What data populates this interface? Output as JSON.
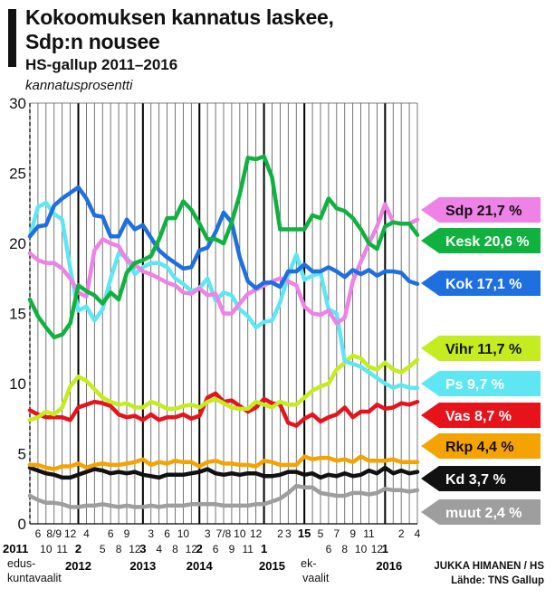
{
  "header": {
    "title_line1": "Kokoomuksen kannatus laskee,",
    "title_line2": "Sdp:n nousee",
    "subtitle": "HS-gallup 2011–2016",
    "unit": "kannatusprosentti"
  },
  "credits": {
    "author": "JUKKA HIMANEN / HS",
    "source": "Lähde: TNS Gallup"
  },
  "chart_data": {
    "type": "line",
    "title": "Kokoomuksen kannatus laskee, Sdp:n nousee",
    "subtitle": "HS-gallup 2011–2016",
    "ylabel": "kannatusprosentti",
    "ylim": [
      0,
      30
    ],
    "yticks": [
      0,
      5,
      10,
      15,
      20,
      25,
      30
    ],
    "xlim": [
      0,
      58
    ],
    "grid": true,
    "month_ticks": [
      {
        "x": 1,
        "label": "6",
        "row": 1
      },
      {
        "x": 3,
        "label": "8/9",
        "row": 1
      },
      {
        "x": 5,
        "label": "12",
        "row": 1
      },
      {
        "x": 2,
        "label": "10",
        "row": 2
      },
      {
        "x": 4,
        "label": "11",
        "row": 2
      },
      {
        "x": 7,
        "label": "4",
        "row": 1
      },
      {
        "x": 10,
        "label": "6",
        "row": 1
      },
      {
        "x": 12,
        "label": "9",
        "row": 1
      },
      {
        "x": 9,
        "label": "5",
        "row": 2
      },
      {
        "x": 11,
        "label": "8",
        "row": 2
      },
      {
        "x": 13,
        "label": "12",
        "row": 2
      },
      {
        "x": 15,
        "label": "3",
        "row": 1
      },
      {
        "x": 17,
        "label": "6",
        "row": 1
      },
      {
        "x": 19,
        "label": "10",
        "row": 1
      },
      {
        "x": 16,
        "label": "4",
        "row": 2
      },
      {
        "x": 18,
        "label": "8",
        "row": 2
      },
      {
        "x": 20,
        "label": "12",
        "row": 2
      },
      {
        "x": 22,
        "label": "3",
        "row": 1
      },
      {
        "x": 24,
        "label": "7/8",
        "row": 1
      },
      {
        "x": 26,
        "label": "10",
        "row": 1
      },
      {
        "x": 28,
        "label": "12",
        "row": 1
      },
      {
        "x": 23,
        "label": "6",
        "row": 2
      },
      {
        "x": 25,
        "label": "9",
        "row": 2
      },
      {
        "x": 27,
        "label": "11",
        "row": 2
      },
      {
        "x": 31,
        "label": "2",
        "row": 1
      },
      {
        "x": 32,
        "label": "3",
        "row": 1
      },
      {
        "x": 36,
        "label": "5",
        "row": 1
      },
      {
        "x": 38,
        "label": "7",
        "row": 1
      },
      {
        "x": 40,
        "label": "9",
        "row": 1
      },
      {
        "x": 37,
        "label": "6",
        "row": 2
      },
      {
        "x": 39,
        "label": "8",
        "row": 2
      },
      {
        "x": 41,
        "label": "10",
        "row": 2
      },
      {
        "x": 43,
        "label": "12",
        "row": 2
      },
      {
        "x": 42,
        "label": "11",
        "row": 1
      },
      {
        "x": 46,
        "label": "2",
        "row": 1
      },
      {
        "x": 48,
        "label": "4",
        "row": 1
      }
    ],
    "bold_ticks": [
      {
        "x": 0,
        "label": "2011",
        "row": 2
      },
      {
        "x": 6,
        "label": "2",
        "row": 2
      },
      {
        "x": 14,
        "label": "3",
        "row": 2
      },
      {
        "x": 21,
        "label": "2",
        "row": 2
      },
      {
        "x": 29,
        "label": "1",
        "row": 2
      },
      {
        "x": 34,
        "label": "15",
        "row": 1
      },
      {
        "x": 44,
        "label": "1",
        "row": 2
      }
    ],
    "year_labels": [
      {
        "x": 6,
        "label": "2012"
      },
      {
        "x": 14,
        "label": "2013"
      },
      {
        "x": 21,
        "label": "2014"
      },
      {
        "x": 30,
        "label": "2015"
      },
      {
        "x": 44.5,
        "label": "2016"
      }
    ],
    "annotations": [
      {
        "x": 0,
        "label_line1": "edus-",
        "label_line2": "kuntavaalit"
      },
      {
        "x": 34,
        "label_line1": "ek-",
        "label_line2": "vaalit"
      }
    ],
    "series": [
      {
        "name": "Sdp",
        "label": "Sdp 21,7 %",
        "color": "#ee82e6",
        "values": [
          19.3,
          18.8,
          18.6,
          18.6,
          18.2,
          17.5,
          16.5,
          16.2,
          19.5,
          20.3,
          20.0,
          19.8,
          18.8,
          18.5,
          18.0,
          17.8,
          17.5,
          17.2,
          17.0,
          16.5,
          16.4,
          16.8,
          16.3,
          16.4,
          15.0,
          15.0,
          15.7,
          16.4,
          16.7,
          17.0,
          17.3,
          17.5,
          17.3,
          17.0,
          15.5,
          15.0,
          14.9,
          15.2,
          14.3,
          14.7,
          17.3,
          18.7,
          20.0,
          21.2,
          22.8,
          21.5,
          21.4,
          21.4,
          21.7
        ]
      },
      {
        "name": "Kesk",
        "label": "Kesk 20,6 %",
        "color": "#0fb23e",
        "values": [
          16.0,
          14.8,
          14.0,
          13.3,
          13.5,
          14.3,
          17.0,
          16.6,
          16.3,
          15.7,
          16.5,
          16.0,
          17.9,
          18.6,
          18.8,
          19.1,
          20.3,
          21.8,
          21.8,
          23.0,
          22.4,
          21.4,
          20.3,
          20.3,
          20.0,
          21.5,
          23.5,
          26.1,
          26.0,
          26.2,
          24.7,
          21.0,
          21.0,
          21.0,
          21.0,
          22.0,
          21.8,
          23.2,
          22.5,
          22.3,
          21.8,
          21.0,
          20.0,
          19.6,
          21.2,
          21.5,
          21.4,
          21.4,
          20.6
        ]
      },
      {
        "name": "Kok",
        "label": "Kok 17,1 %",
        "color": "#1e6fe0",
        "values": [
          20.5,
          21.2,
          21.3,
          22.7,
          23.2,
          23.6,
          24.0,
          23.2,
          22.0,
          21.9,
          20.5,
          20.5,
          21.7,
          21.0,
          21.3,
          20.4,
          19.5,
          19.0,
          18.6,
          18.2,
          18.3,
          19.5,
          19.7,
          20.8,
          22.2,
          21.5,
          19.0,
          17.3,
          16.8,
          17.2,
          17.2,
          16.9,
          18.0,
          18.0,
          18.5,
          18.0,
          18.0,
          18.3,
          18.0,
          17.6,
          18.1,
          17.8,
          18.1,
          17.7,
          18.0,
          18.0,
          17.9,
          17.3,
          17.1
        ]
      },
      {
        "name": "Ps",
        "label": "Ps 9,7 %",
        "color": "#5ee7f3",
        "values": [
          20.5,
          22.6,
          22.9,
          22.1,
          21.7,
          18.2,
          15.2,
          15.5,
          14.5,
          15.3,
          17.5,
          19.3,
          19.0,
          17.8,
          18.3,
          18.6,
          18.6,
          18.3,
          17.5,
          17.1,
          16.6,
          16.8,
          17.5,
          15.9,
          16.5,
          16.3,
          15.3,
          14.8,
          14.0,
          14.4,
          14.5,
          15.8,
          17.7,
          19.2,
          17.4,
          17.7,
          17.9,
          15.3,
          15.0,
          11.6,
          11.4,
          11.2,
          10.8,
          10.4,
          10.0,
          9.7,
          9.9,
          9.7,
          9.7
        ]
      },
      {
        "name": "Vihr",
        "label": "Vihr 11,7 %",
        "color": "#c4ec1f",
        "values": [
          7.4,
          7.6,
          8.0,
          7.8,
          8.3,
          9.8,
          10.5,
          10.2,
          9.6,
          9.0,
          8.7,
          8.5,
          8.6,
          8.3,
          8.3,
          8.7,
          8.5,
          8.2,
          8.2,
          8.4,
          8.5,
          8.3,
          8.7,
          8.9,
          8.6,
          8.3,
          8.2,
          8.2,
          8.7,
          8.5,
          8.3,
          8.7,
          8.5,
          8.5,
          9.0,
          9.5,
          9.8,
          10.0,
          11.0,
          11.5,
          12.0,
          11.8,
          11.2,
          11.0,
          11.5,
          11.0,
          10.8,
          11.2,
          11.7
        ]
      },
      {
        "name": "Vas",
        "label": "Vas 8,7 %",
        "color": "#e6131b",
        "values": [
          8.1,
          7.8,
          7.6,
          7.6,
          7.6,
          7.4,
          8.3,
          8.5,
          8.7,
          8.6,
          8.4,
          7.8,
          7.6,
          7.7,
          7.4,
          7.8,
          7.4,
          7.6,
          7.6,
          7.8,
          7.5,
          7.7,
          9.0,
          9.3,
          8.7,
          8.8,
          8.4,
          8.0,
          8.3,
          8.9,
          8.6,
          8.5,
          7.2,
          7.0,
          7.5,
          7.8,
          7.3,
          7.6,
          7.8,
          8.3,
          7.6,
          8.0,
          8.0,
          8.5,
          8.2,
          8.3,
          8.6,
          8.5,
          8.7
        ]
      },
      {
        "name": "Rkp",
        "label": "Rkp 4,4 %",
        "color": "#f5a300",
        "values": [
          4.2,
          4.2,
          4.0,
          3.9,
          4.1,
          4.1,
          4.3,
          4.0,
          4.2,
          4.3,
          4.2,
          4.2,
          4.3,
          4.4,
          4.6,
          4.2,
          4.4,
          4.3,
          4.5,
          4.4,
          4.4,
          4.1,
          4.4,
          4.5,
          4.3,
          4.3,
          4.2,
          4.2,
          4.1,
          4.5,
          4.4,
          4.2,
          4.2,
          4.2,
          4.8,
          4.6,
          4.7,
          4.7,
          4.5,
          4.6,
          4.4,
          4.8,
          4.5,
          4.5,
          4.5,
          4.6,
          4.4,
          4.4,
          4.4
        ]
      },
      {
        "name": "Kd",
        "label": "Kd 3,7 %",
        "color": "#111111",
        "values": [
          4.0,
          3.8,
          3.6,
          3.5,
          3.3,
          3.3,
          3.5,
          3.7,
          3.9,
          3.8,
          3.6,
          3.7,
          3.6,
          3.7,
          3.5,
          3.4,
          3.3,
          3.5,
          3.5,
          3.5,
          3.6,
          3.7,
          3.9,
          3.6,
          3.5,
          3.6,
          3.5,
          3.6,
          3.6,
          3.4,
          3.4,
          3.5,
          3.7,
          3.7,
          3.5,
          3.6,
          3.3,
          3.5,
          3.4,
          3.6,
          3.4,
          3.5,
          3.8,
          3.6,
          4.0,
          3.6,
          3.8,
          3.6,
          3.7
        ]
      },
      {
        "name": "muut",
        "label": "muut 2,4 %",
        "color": "#9e9e9e",
        "values": [
          2.0,
          1.7,
          1.5,
          1.5,
          1.4,
          1.2,
          1.2,
          1.3,
          1.3,
          1.4,
          1.3,
          1.2,
          1.3,
          1.2,
          1.2,
          1.3,
          1.2,
          1.3,
          1.3,
          1.3,
          1.4,
          1.4,
          1.4,
          1.4,
          1.3,
          1.3,
          1.3,
          1.3,
          1.4,
          1.4,
          1.6,
          1.8,
          2.2,
          2.7,
          2.6,
          2.6,
          2.2,
          2.1,
          2.0,
          2.0,
          2.2,
          2.2,
          2.1,
          2.2,
          2.5,
          2.4,
          2.4,
          2.3,
          2.4
        ]
      }
    ]
  }
}
